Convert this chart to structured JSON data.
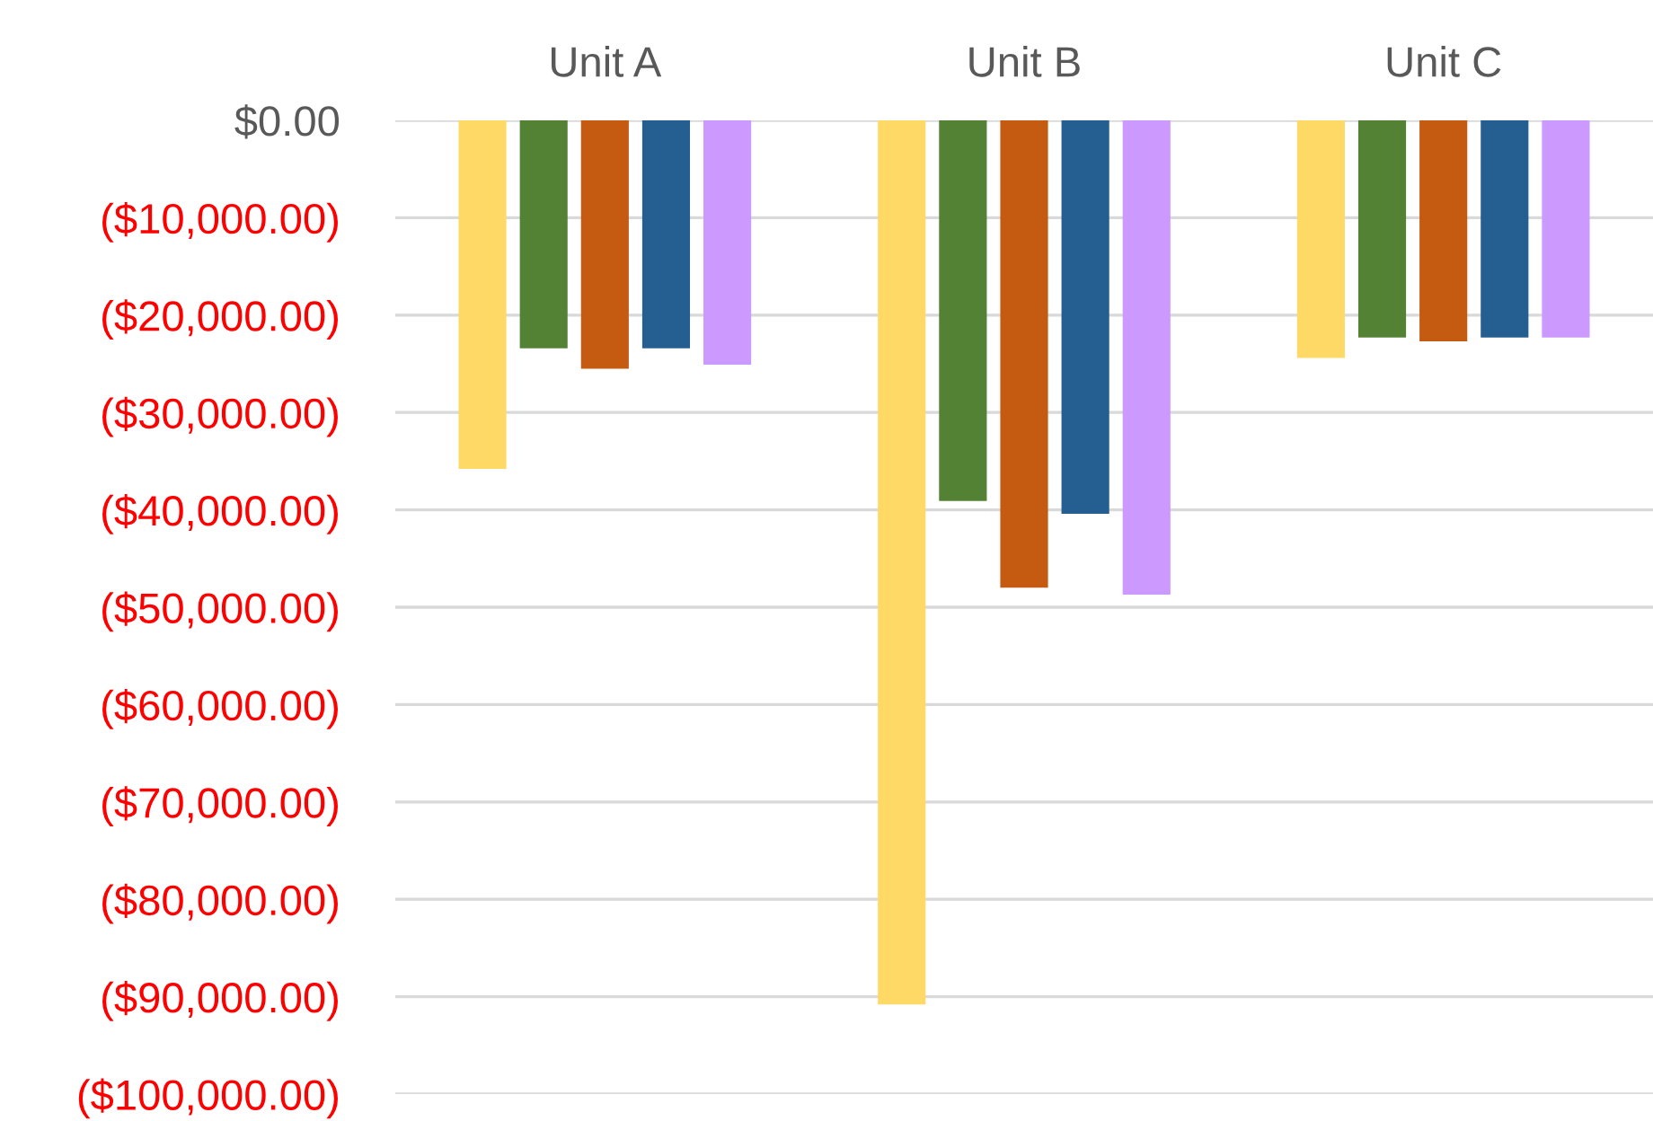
{
  "chart_data": {
    "type": "bar",
    "categories": [
      "Unit A",
      "Unit B",
      "Unit C"
    ],
    "series": [
      {
        "color": "#ffd966",
        "values": [
          -35800,
          -90800,
          -24400
        ]
      },
      {
        "color": "#548235",
        "values": [
          -23400,
          -39100,
          -22300
        ]
      },
      {
        "color": "#c55a11",
        "values": [
          -25500,
          -48000,
          -22700
        ]
      },
      {
        "color": "#255e91",
        "values": [
          -23400,
          -40400,
          -22300
        ]
      },
      {
        "color": "#cc99ff",
        "values": [
          -25100,
          -48700,
          -22300
        ]
      }
    ],
    "ylim": [
      -100000,
      0
    ],
    "yticks": [
      {
        "value": 0,
        "label": "$0.00"
      },
      {
        "value": -10000,
        "label": "($10,000.00)"
      },
      {
        "value": -20000,
        "label": "($20,000.00)"
      },
      {
        "value": -30000,
        "label": "($30,000.00)"
      },
      {
        "value": -40000,
        "label": "($40,000.00)"
      },
      {
        "value": -50000,
        "label": "($50,000.00)"
      },
      {
        "value": -60000,
        "label": "($60,000.00)"
      },
      {
        "value": -70000,
        "label": "($70,000.00)"
      },
      {
        "value": -80000,
        "label": "($80,000.00)"
      },
      {
        "value": -90000,
        "label": "($90,000.00)"
      },
      {
        "value": -100000,
        "label": "($100,000.00)"
      }
    ],
    "grid": "y",
    "legend": false
  }
}
